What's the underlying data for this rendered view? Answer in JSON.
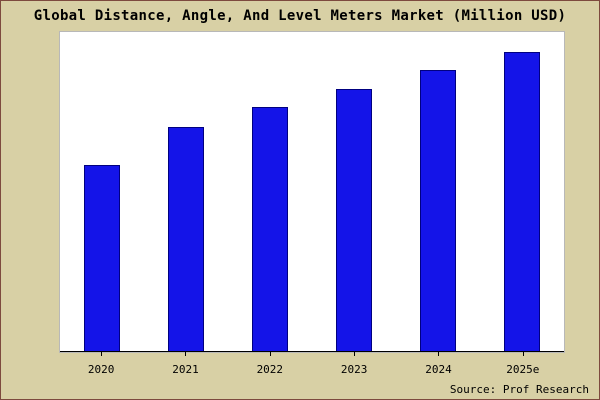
{
  "title": "Global Distance, Angle, And Level Meters Market (Million USD)",
  "source": "Source: Prof Research",
  "colors": {
    "background": "#d8d0a5",
    "frame_border": "#7d4a3e",
    "plot_background": "#ffffff",
    "bar_fill": "#1414e8",
    "bar_border": "#000080",
    "axis": "#000000"
  },
  "chart_data": {
    "type": "bar",
    "title": "Global Distance, Angle, And Level Meters Market (Million USD)",
    "categories": [
      "2020",
      "2021",
      "2022",
      "2023",
      "2024",
      "2025e"
    ],
    "values": [
      187,
      225,
      245,
      263,
      282,
      300
    ],
    "xlabel": "",
    "ylabel": "",
    "ylim": [
      0,
      320
    ],
    "grid": false,
    "legend": false,
    "y_axis_labels_shown": false,
    "source_annotation": "Source: Prof Research"
  }
}
